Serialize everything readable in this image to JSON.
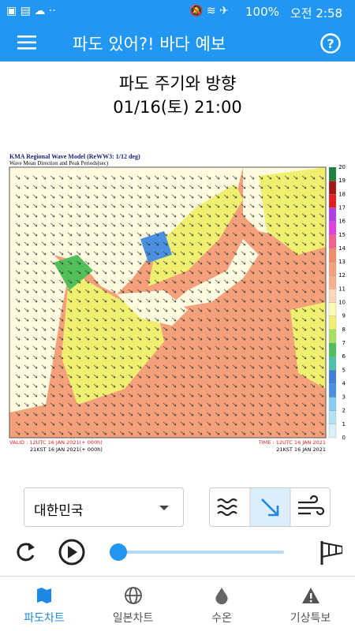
{
  "status_bar": {
    "battery": "100%",
    "time": "오전 2:58"
  },
  "app_bar": {
    "title": "파도 있어?! 바다 예보"
  },
  "heading": {
    "title": "파도 주기와 방향",
    "datetime": "01/16(토) 21:00"
  },
  "map": {
    "title": "KMA Regional Wave Model (ReWW3: 1/12 deg)",
    "subtitle": "Wave Mean Direction and Peak Periods(sec)",
    "valid_utc": "VALID : 12UTC 16 JAN 2021(+ 000h)",
    "valid_kst": "21KST 16 JAN 2021(+ 000h)",
    "time_utc": "TIME : 12UTC 16 JAN 2021",
    "time_kst": "21KST 16 JAN 2021",
    "colorbar_labels": [
      0,
      1,
      2,
      3,
      4,
      5,
      6,
      7,
      8,
      9,
      10,
      11,
      12,
      13,
      14,
      15,
      16,
      17,
      18,
      19,
      20
    ],
    "colorbar_colors": [
      "#ffffff",
      "#d8f0fa",
      "#b4e2f6",
      "#82cdf0",
      "#4a90e0",
      "#3f7fd8",
      "#4cc0a8",
      "#52c05a",
      "#a8e060",
      "#f0f070",
      "#fafab0",
      "#fbd7b8",
      "#f7b08a",
      "#f4a07a",
      "#f08c6a",
      "#f06090",
      "#e040e0",
      "#b040e0",
      "#e02020",
      "#a01818",
      "#208040"
    ]
  },
  "controls": {
    "region": "대한민국"
  },
  "bottom_nav": [
    "파도차트",
    "일본차트",
    "수온",
    "기상특보"
  ]
}
